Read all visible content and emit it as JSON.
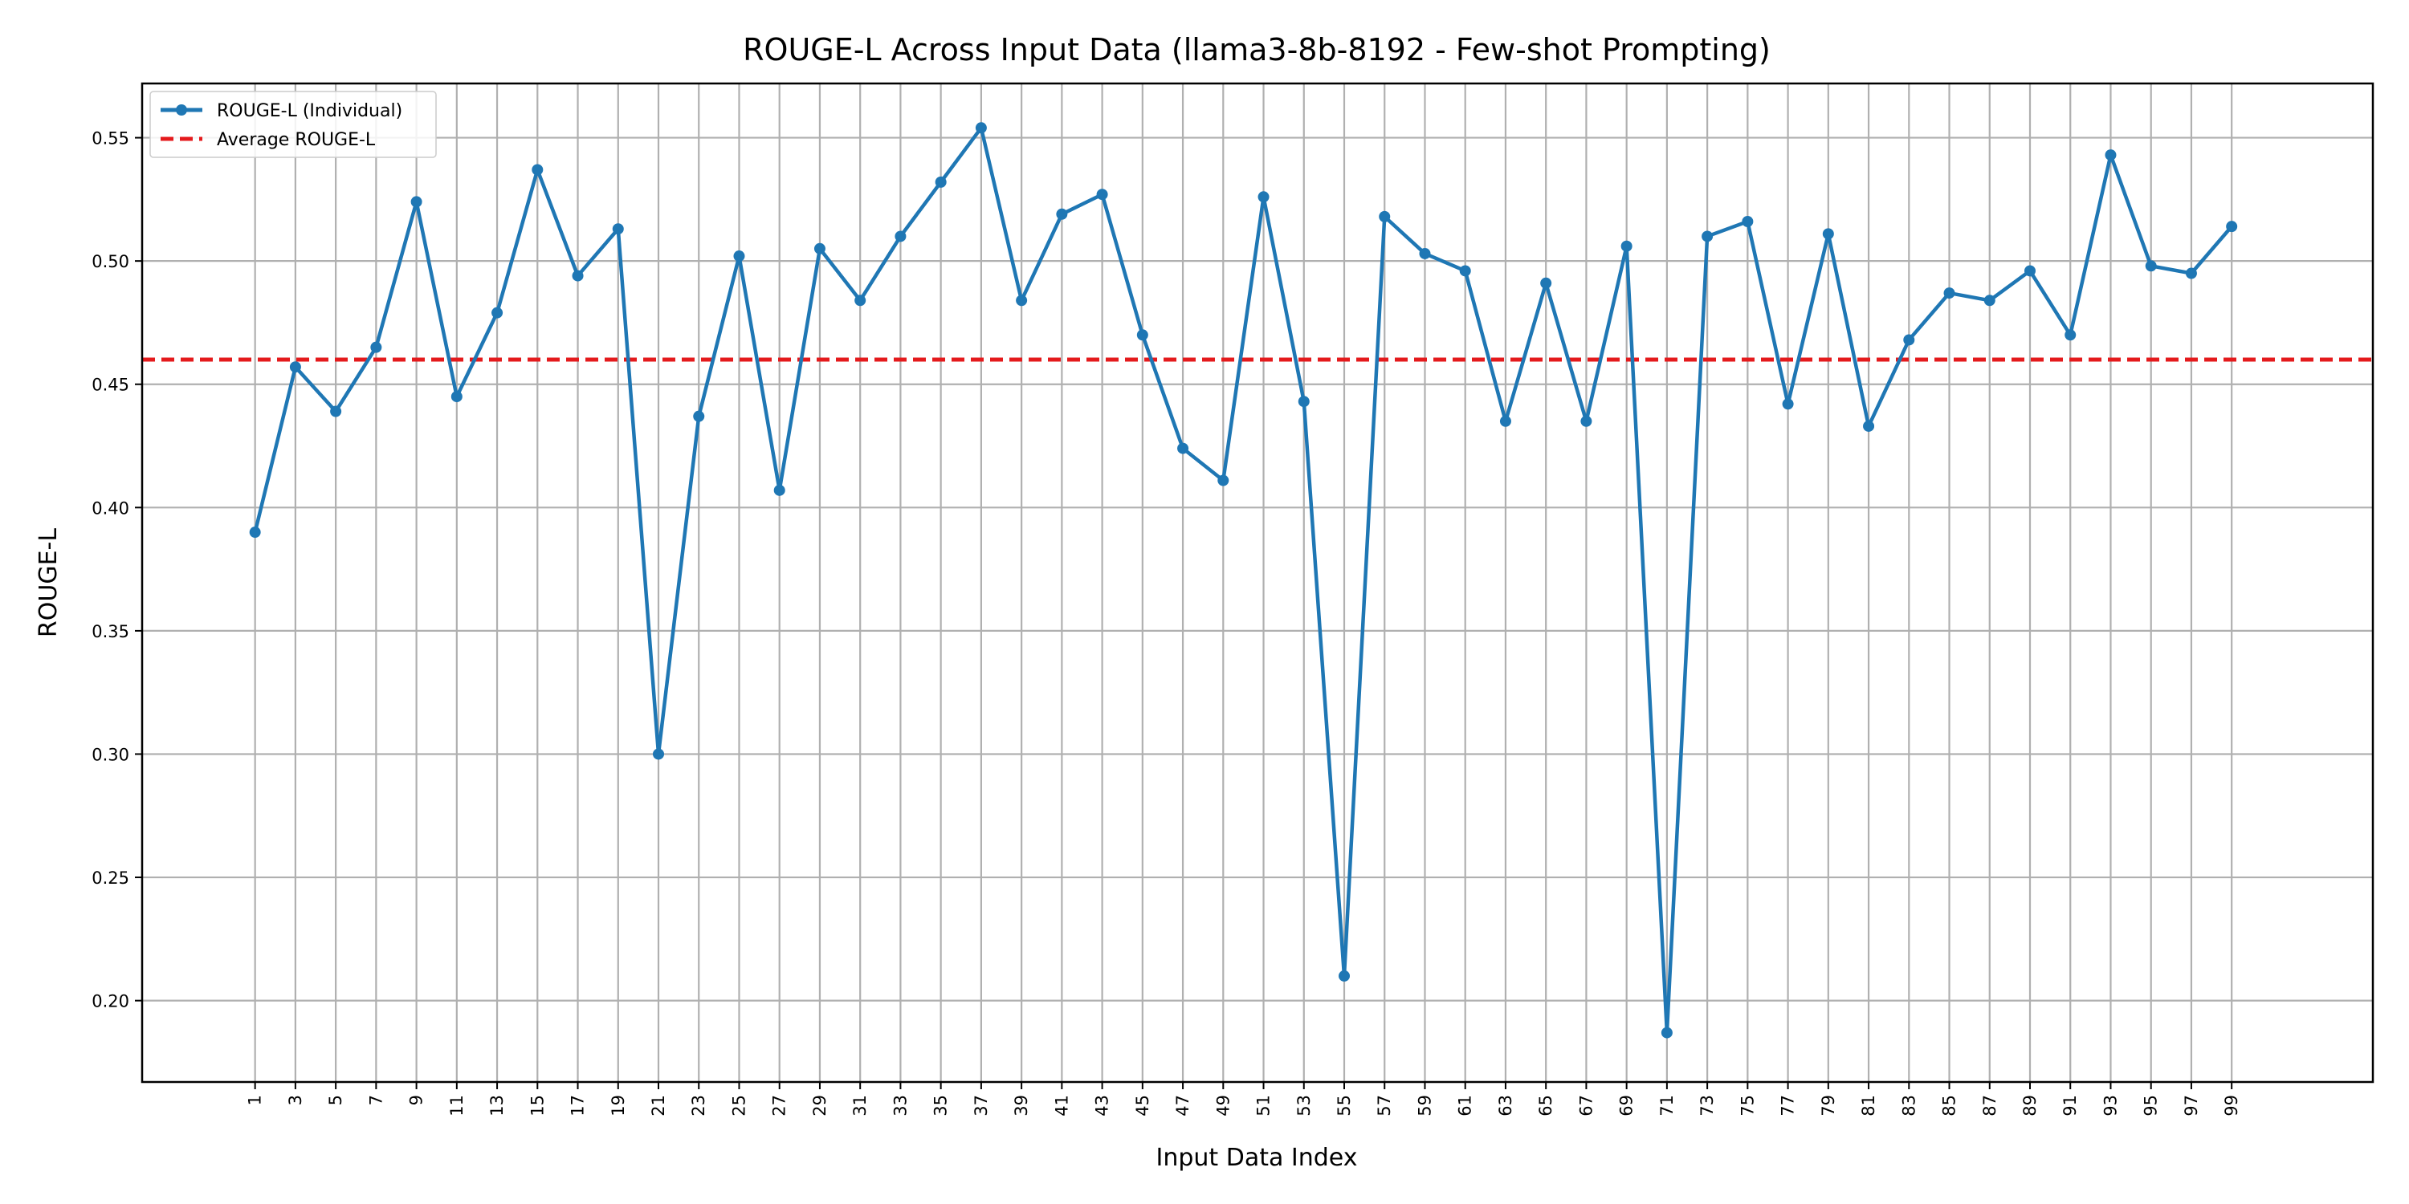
{
  "chart_data": {
    "type": "line",
    "title": "ROUGE-L Across Input Data (llama3-8b-8192 - Few-shot Prompting)",
    "xlabel": "Input Data Index",
    "ylabel": "ROUGE-L",
    "x": [
      1,
      3,
      5,
      7,
      9,
      11,
      13,
      15,
      17,
      19,
      21,
      23,
      25,
      27,
      29,
      31,
      33,
      35,
      37,
      39,
      41,
      43,
      45,
      47,
      49,
      51,
      53,
      55,
      57,
      59,
      61,
      63,
      65,
      67,
      69,
      71,
      73,
      75,
      77,
      79,
      81,
      83,
      85,
      87,
      89,
      91,
      93,
      95,
      97,
      99
    ],
    "series": [
      {
        "name": "ROUGE-L (Individual)",
        "color": "#1f77b4",
        "values": [
          0.39,
          0.457,
          0.439,
          0.465,
          0.524,
          0.445,
          0.479,
          0.537,
          0.494,
          0.513,
          0.3,
          0.437,
          0.502,
          0.407,
          0.505,
          0.484,
          0.51,
          0.532,
          0.554,
          0.484,
          0.519,
          0.527,
          0.47,
          0.424,
          0.411,
          0.526,
          0.443,
          0.21,
          0.518,
          0.503,
          0.496,
          0.435,
          0.491,
          0.435,
          0.506,
          0.187,
          0.51,
          0.516,
          0.442,
          0.511,
          0.433,
          0.468,
          0.487,
          0.484,
          0.496,
          0.47,
          0.543,
          0.498,
          0.495,
          0.514
        ]
      }
    ],
    "average": {
      "name": "Average ROUGE-L",
      "value": 0.46,
      "color": "#e41a1c"
    },
    "xlim": [
      -4.6,
      106
    ],
    "ylim": [
      0.167,
      0.572
    ],
    "xticks": [
      1,
      3,
      5,
      7,
      9,
      11,
      13,
      15,
      17,
      19,
      21,
      23,
      25,
      27,
      29,
      31,
      33,
      35,
      37,
      39,
      41,
      43,
      45,
      47,
      49,
      51,
      53,
      55,
      57,
      59,
      61,
      63,
      65,
      67,
      69,
      71,
      73,
      75,
      77,
      79,
      81,
      83,
      85,
      87,
      89,
      91,
      93,
      95,
      97,
      99
    ],
    "yticks": [
      0.2,
      0.25,
      0.3,
      0.35,
      0.4,
      0.45,
      0.5,
      0.55
    ],
    "grid": true,
    "legend_position": "top-left"
  }
}
